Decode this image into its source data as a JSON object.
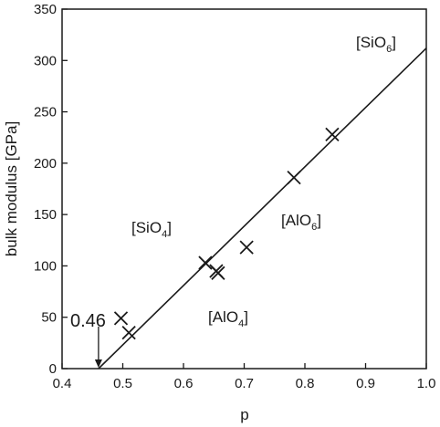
{
  "chart_data": {
    "type": "scatter",
    "xlabel": "p",
    "ylabel": "bulk modulus [GPa]",
    "xlim": [
      0.4,
      1.0
    ],
    "ylim": [
      0,
      350
    ],
    "xticks": [
      0.4,
      0.5,
      0.6,
      0.7,
      0.8,
      0.9,
      1.0
    ],
    "xtick_labels": [
      "0.4",
      "0.5",
      "0.6",
      "0.7",
      "0.8",
      "0.9",
      "1.0"
    ],
    "yticks": [
      0,
      50,
      100,
      150,
      200,
      250,
      300,
      350
    ],
    "ytick_labels": [
      "0",
      "50",
      "100",
      "150",
      "200",
      "250",
      "300",
      "350"
    ],
    "grid": false,
    "marker": "x",
    "points": [
      {
        "x": 0.497,
        "y": 49
      },
      {
        "x": 0.51,
        "y": 35
      },
      {
        "x": 0.636,
        "y": 103
      },
      {
        "x": 0.654,
        "y": 95
      },
      {
        "x": 0.657,
        "y": 93
      },
      {
        "x": 0.704,
        "y": 118
      },
      {
        "x": 0.782,
        "y": 186
      },
      {
        "x": 0.845,
        "y": 228
      }
    ],
    "fit_line": {
      "x": [
        0.46,
        1.0
      ],
      "y": [
        0,
        312
      ]
    },
    "annotations": [
      {
        "text": "0.46",
        "arrow_to": {
          "x": 0.46,
          "y": 0
        }
      }
    ],
    "region_labels": [
      {
        "base": "[SiO",
        "sub": "6",
        "close": "]"
      },
      {
        "base": "[SiO",
        "sub": "4",
        "close": "]"
      },
      {
        "base": "[AlO",
        "sub": "6",
        "close": "]"
      },
      {
        "base": "[AlO",
        "sub": "4",
        "close": "]"
      }
    ],
    "colors": {
      "ink": "#1a1a1a",
      "background": "#ffffff"
    }
  }
}
